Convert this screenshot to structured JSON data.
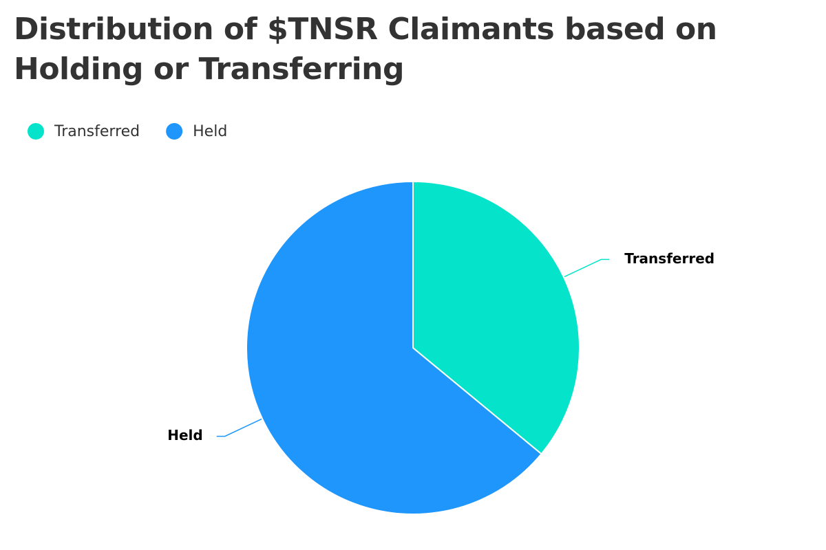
{
  "chart_data": {
    "type": "pie",
    "title": "Distribution of $TNSR Claimants based on Holding or Transferring",
    "categories": [
      "Transferred",
      "Held"
    ],
    "values": [
      36,
      64
    ],
    "colors": [
      "#05e3cb",
      "#1e96fc"
    ],
    "legend": "top-left"
  }
}
